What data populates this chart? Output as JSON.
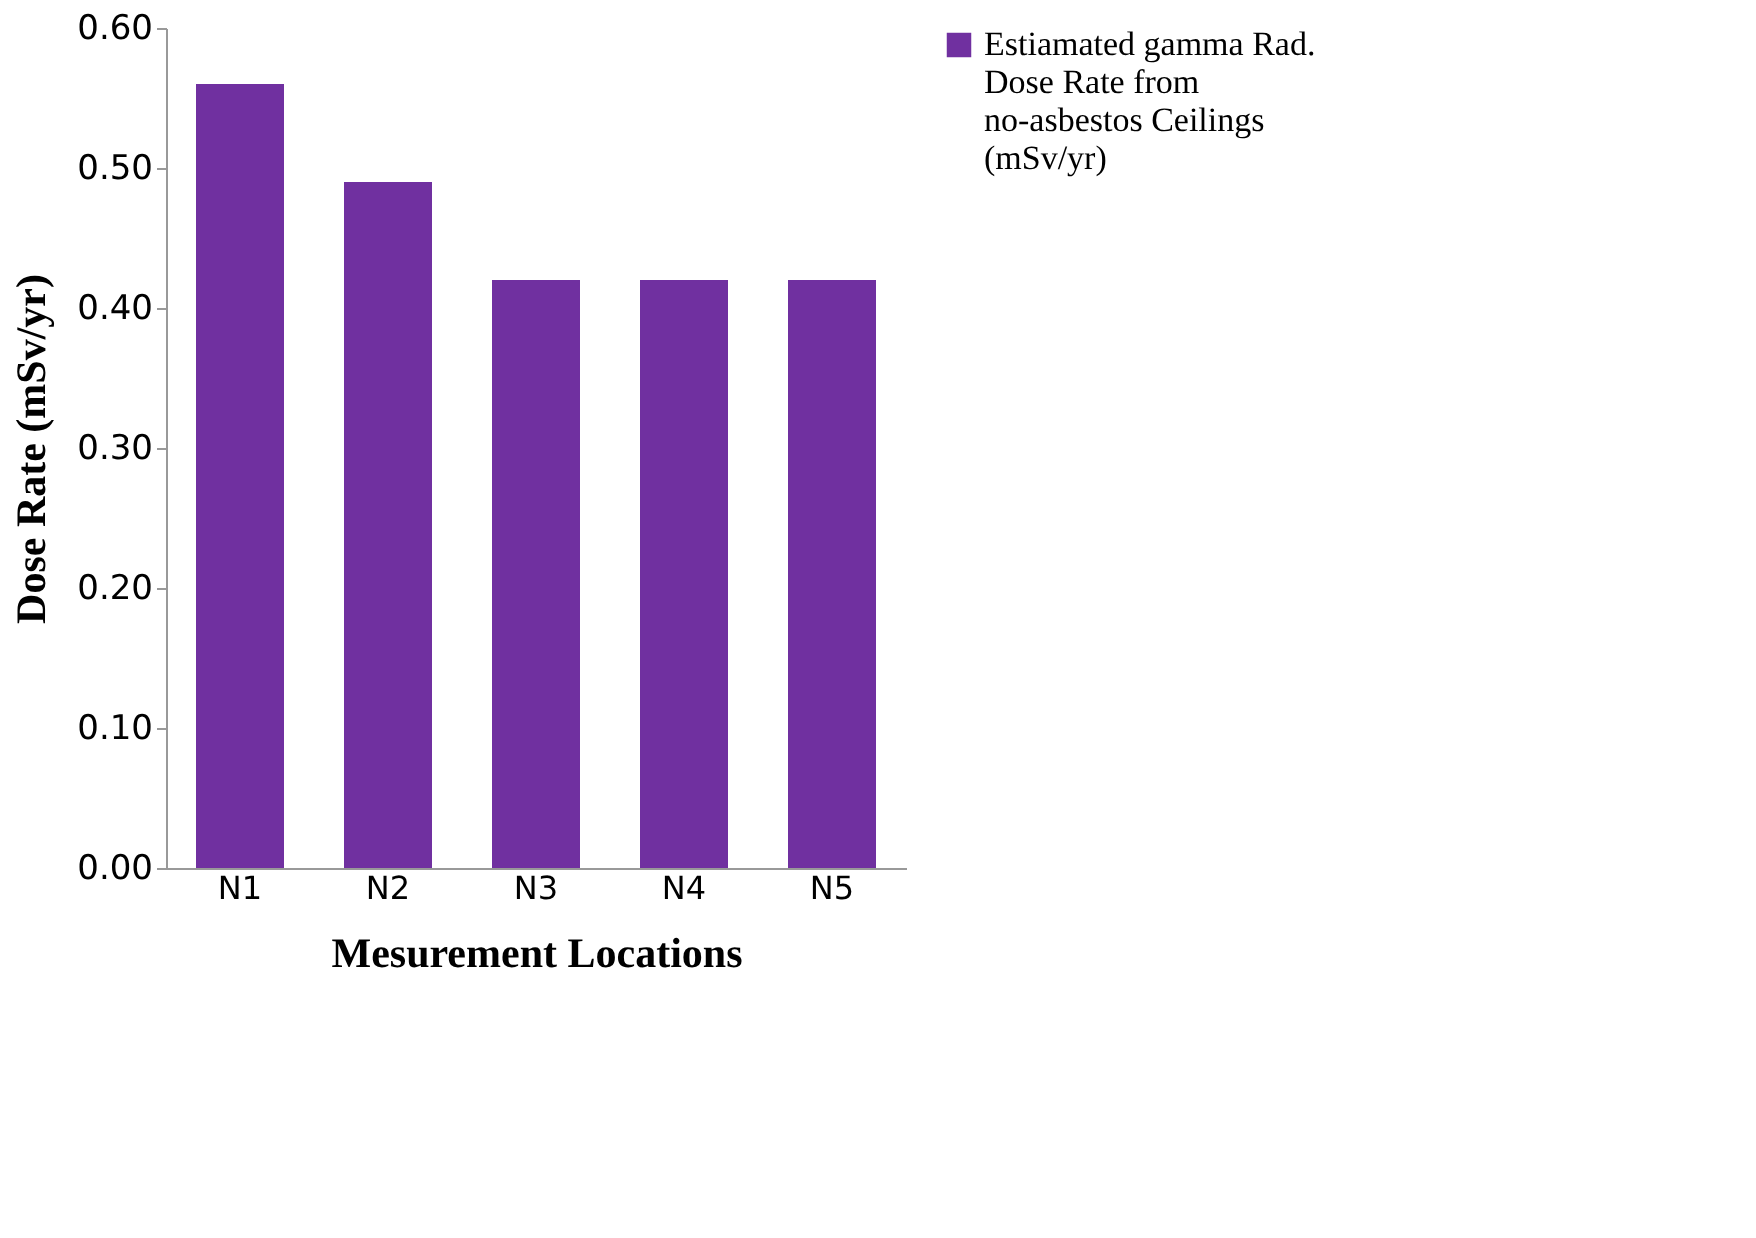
{
  "chart_data": {
    "type": "bar",
    "xlabel": "Mesurement Locations",
    "ylabel": "Dose Rate (mSv/yr)",
    "categories": [
      "N1",
      "N2",
      "N3",
      "N4",
      "N5"
    ],
    "series": [
      {
        "name": "Estiamated gamma Rad. Dose Rate from no-asbestos Ceilings (mSv/yr)",
        "color": "#7030a0",
        "values": [
          0.56,
          0.49,
          0.42,
          0.42,
          0.42
        ]
      }
    ],
    "ylim": [
      0,
      0.6
    ],
    "yticks": [
      {
        "value": 0,
        "label": "0.00"
      },
      {
        "value": 0.1,
        "label": "0.10"
      },
      {
        "value": 0.2,
        "label": "0.20"
      },
      {
        "value": 0.3,
        "label": "0.30"
      },
      {
        "value": 0.4,
        "label": "0.40"
      },
      {
        "value": 0.5,
        "label": "0.50"
      },
      {
        "value": 0.6,
        "label": "0.60"
      }
    ],
    "grid": false,
    "legend": "right"
  }
}
